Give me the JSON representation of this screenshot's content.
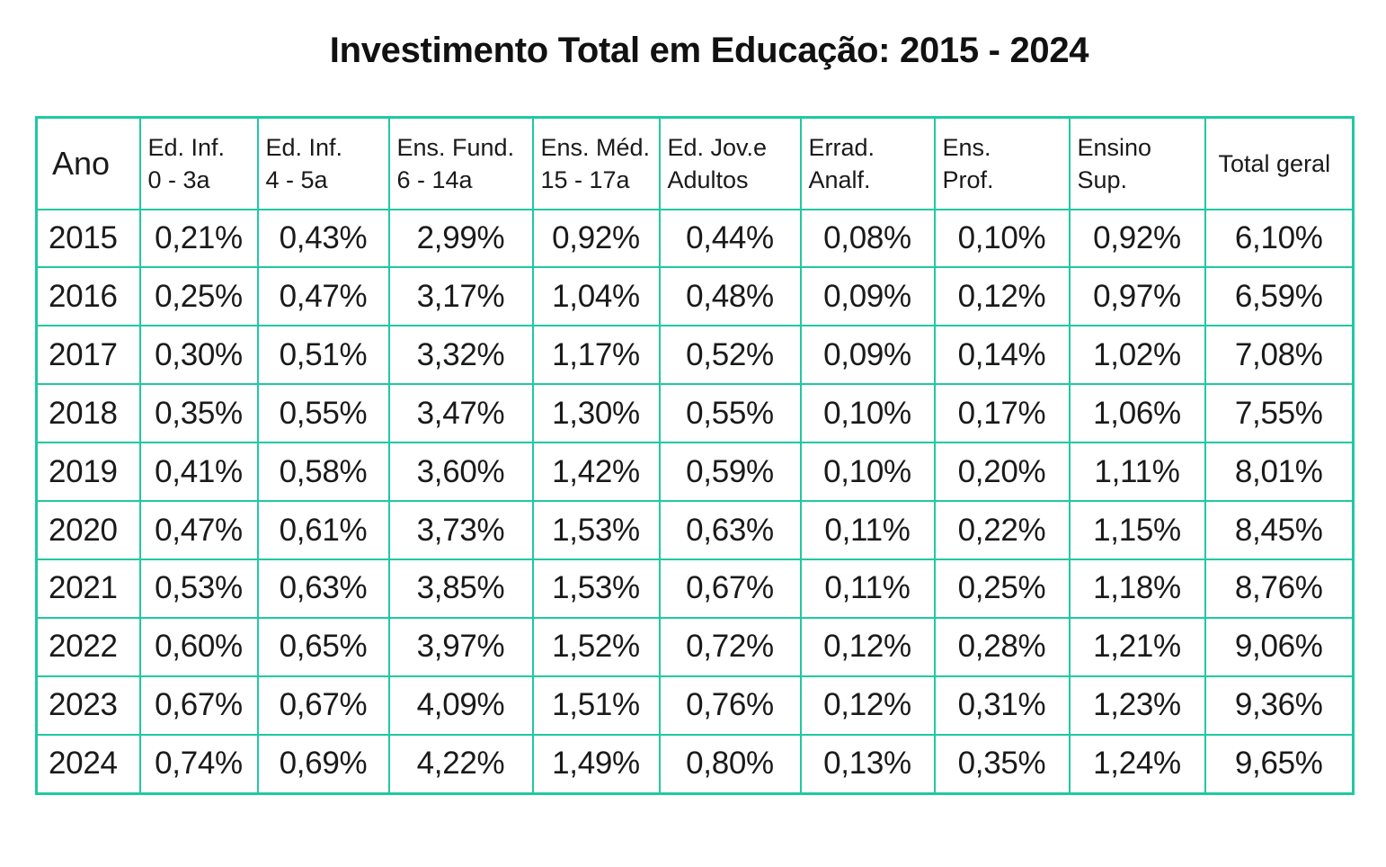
{
  "chart_data": {
    "type": "table",
    "title": "Investimento Total em Educação: 2015 - 2024",
    "columns": [
      {
        "key": "ano",
        "lines": [
          "Ano"
        ]
      },
      {
        "key": "ed_inf_0_3",
        "lines": [
          "Ed. Inf.",
          "0 - 3a"
        ]
      },
      {
        "key": "ed_inf_4_5",
        "lines": [
          "Ed. Inf.",
          "4 - 5a"
        ]
      },
      {
        "key": "ens_fund",
        "lines": [
          "Ens. Fund.",
          "6 - 14a"
        ]
      },
      {
        "key": "ens_med",
        "lines": [
          "Ens. Méd.",
          "15 - 17a"
        ]
      },
      {
        "key": "eja",
        "lines": [
          "Ed. Jov.e",
          "Adultos"
        ]
      },
      {
        "key": "errad_analf",
        "lines": [
          "Errad.",
          "Analf."
        ]
      },
      {
        "key": "ens_prof",
        "lines": [
          "Ens.",
          "Prof."
        ]
      },
      {
        "key": "ensino_sup",
        "lines": [
          "Ensino",
          "Sup."
        ]
      },
      {
        "key": "total",
        "lines": [
          "Total geral"
        ]
      }
    ],
    "rows": [
      [
        "2015",
        "0,21%",
        "0,43%",
        "2,99%",
        "0,92%",
        "0,44%",
        "0,08%",
        "0,10%",
        "0,92%",
        "6,10%"
      ],
      [
        "2016",
        "0,25%",
        "0,47%",
        "3,17%",
        "1,04%",
        "0,48%",
        "0,09%",
        "0,12%",
        "0,97%",
        "6,59%"
      ],
      [
        "2017",
        "0,30%",
        "0,51%",
        "3,32%",
        "1,17%",
        "0,52%",
        "0,09%",
        "0,14%",
        "1,02%",
        "7,08%"
      ],
      [
        "2018",
        "0,35%",
        "0,55%",
        "3,47%",
        "1,30%",
        "0,55%",
        "0,10%",
        "0,17%",
        "1,06%",
        "7,55%"
      ],
      [
        "2019",
        "0,41%",
        "0,58%",
        "3,60%",
        "1,42%",
        "0,59%",
        "0,10%",
        "0,20%",
        "1,11%",
        "8,01%"
      ],
      [
        "2020",
        "0,47%",
        "0,61%",
        "3,73%",
        "1,53%",
        "0,63%",
        "0,11%",
        "0,22%",
        "1,15%",
        "8,45%"
      ],
      [
        "2021",
        "0,53%",
        "0,63%",
        "3,85%",
        "1,53%",
        "0,67%",
        "0,11%",
        "0,25%",
        "1,18%",
        "8,76%"
      ],
      [
        "2022",
        "0,60%",
        "0,65%",
        "3,97%",
        "1,52%",
        "0,72%",
        "0,12%",
        "0,28%",
        "1,21%",
        "9,06%"
      ],
      [
        "2023",
        "0,67%",
        "0,67%",
        "4,09%",
        "1,51%",
        "0,76%",
        "0,12%",
        "0,31%",
        "1,23%",
        "9,36%"
      ],
      [
        "2024",
        "0,74%",
        "0,69%",
        "4,22%",
        "1,49%",
        "0,80%",
        "0,13%",
        "0,35%",
        "1,24%",
        "9,65%"
      ]
    ]
  },
  "style": {
    "border_color": "#20c9a0",
    "text_color": "#1a1a1a",
    "background": "#ffffff"
  }
}
